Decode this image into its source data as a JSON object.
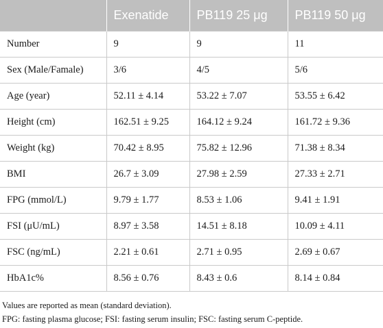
{
  "table": {
    "headers": [
      "",
      "Exenatide",
      "PB119 25 μg",
      "PB119 50 μg"
    ],
    "rows": [
      [
        "Number",
        "9",
        "9",
        "11"
      ],
      [
        "Sex (Male/Famale)",
        "3/6",
        "4/5",
        "5/6"
      ],
      [
        "Age (year)",
        "52.11 ± 4.14",
        "53.22 ± 7.07",
        "53.55 ± 6.42"
      ],
      [
        "Height (cm)",
        "162.51 ± 9.25",
        "164.12 ± 9.24",
        "161.72 ± 9.36"
      ],
      [
        "Weight (kg)",
        "70.42 ± 8.95",
        "75.82 ± 12.96",
        "71.38 ± 8.34"
      ],
      [
        "BMI",
        "26.7 ± 3.09",
        "27.98 ± 2.59",
        "27.33 ± 2.71"
      ],
      [
        "FPG (mmol/L)",
        "9.79 ± 1.77",
        "8.53 ± 1.06",
        "9.41 ± 1.91"
      ],
      [
        "FSI (μU/mL)",
        "8.97 ± 3.58",
        "14.51 ± 8.18",
        "10.09 ± 4.11"
      ],
      [
        "FSC (ng/mL)",
        "2.21 ± 0.61",
        "2.71 ± 0.95",
        "2.69 ± 0.67"
      ],
      [
        "HbA1c%",
        "8.56 ± 0.76",
        "8.43 ± 0.6",
        "8.14 ± 0.84"
      ]
    ]
  },
  "notes": [
    "Values are reported as mean (standard deviation).",
    "FPG: fasting plasma glucose; FSI: fasting serum insulin; FSC: fasting serum C-peptide."
  ]
}
